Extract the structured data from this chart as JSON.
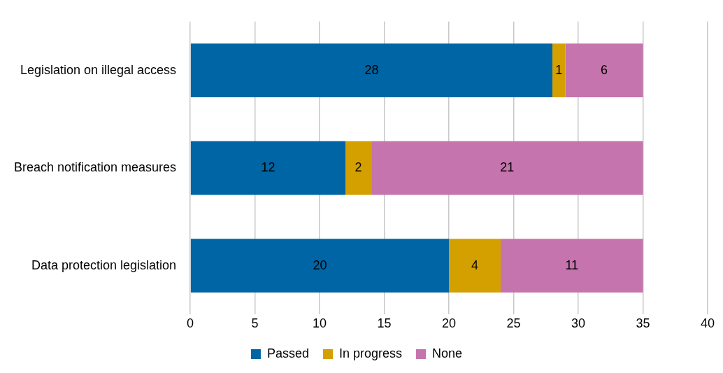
{
  "chart_data": {
    "type": "bar",
    "orientation": "horizontal",
    "stacked": true,
    "categories": [
      "Legislation on illegal access",
      "Breach notification measures",
      "Data protection legislation"
    ],
    "series": [
      {
        "name": "Passed",
        "color": "#0065a4",
        "values": [
          28,
          12,
          20
        ]
      },
      {
        "name": "In progress",
        "color": "#d4a000",
        "values": [
          1,
          2,
          4
        ]
      },
      {
        "name": "None",
        "color": "#c574ad",
        "values": [
          6,
          21,
          11
        ]
      }
    ],
    "xlim": [
      0,
      40
    ],
    "xticks": [
      0,
      5,
      10,
      15,
      20,
      25,
      30,
      35,
      40
    ],
    "grid": "x",
    "legend": "bottom",
    "data_labels": true
  }
}
